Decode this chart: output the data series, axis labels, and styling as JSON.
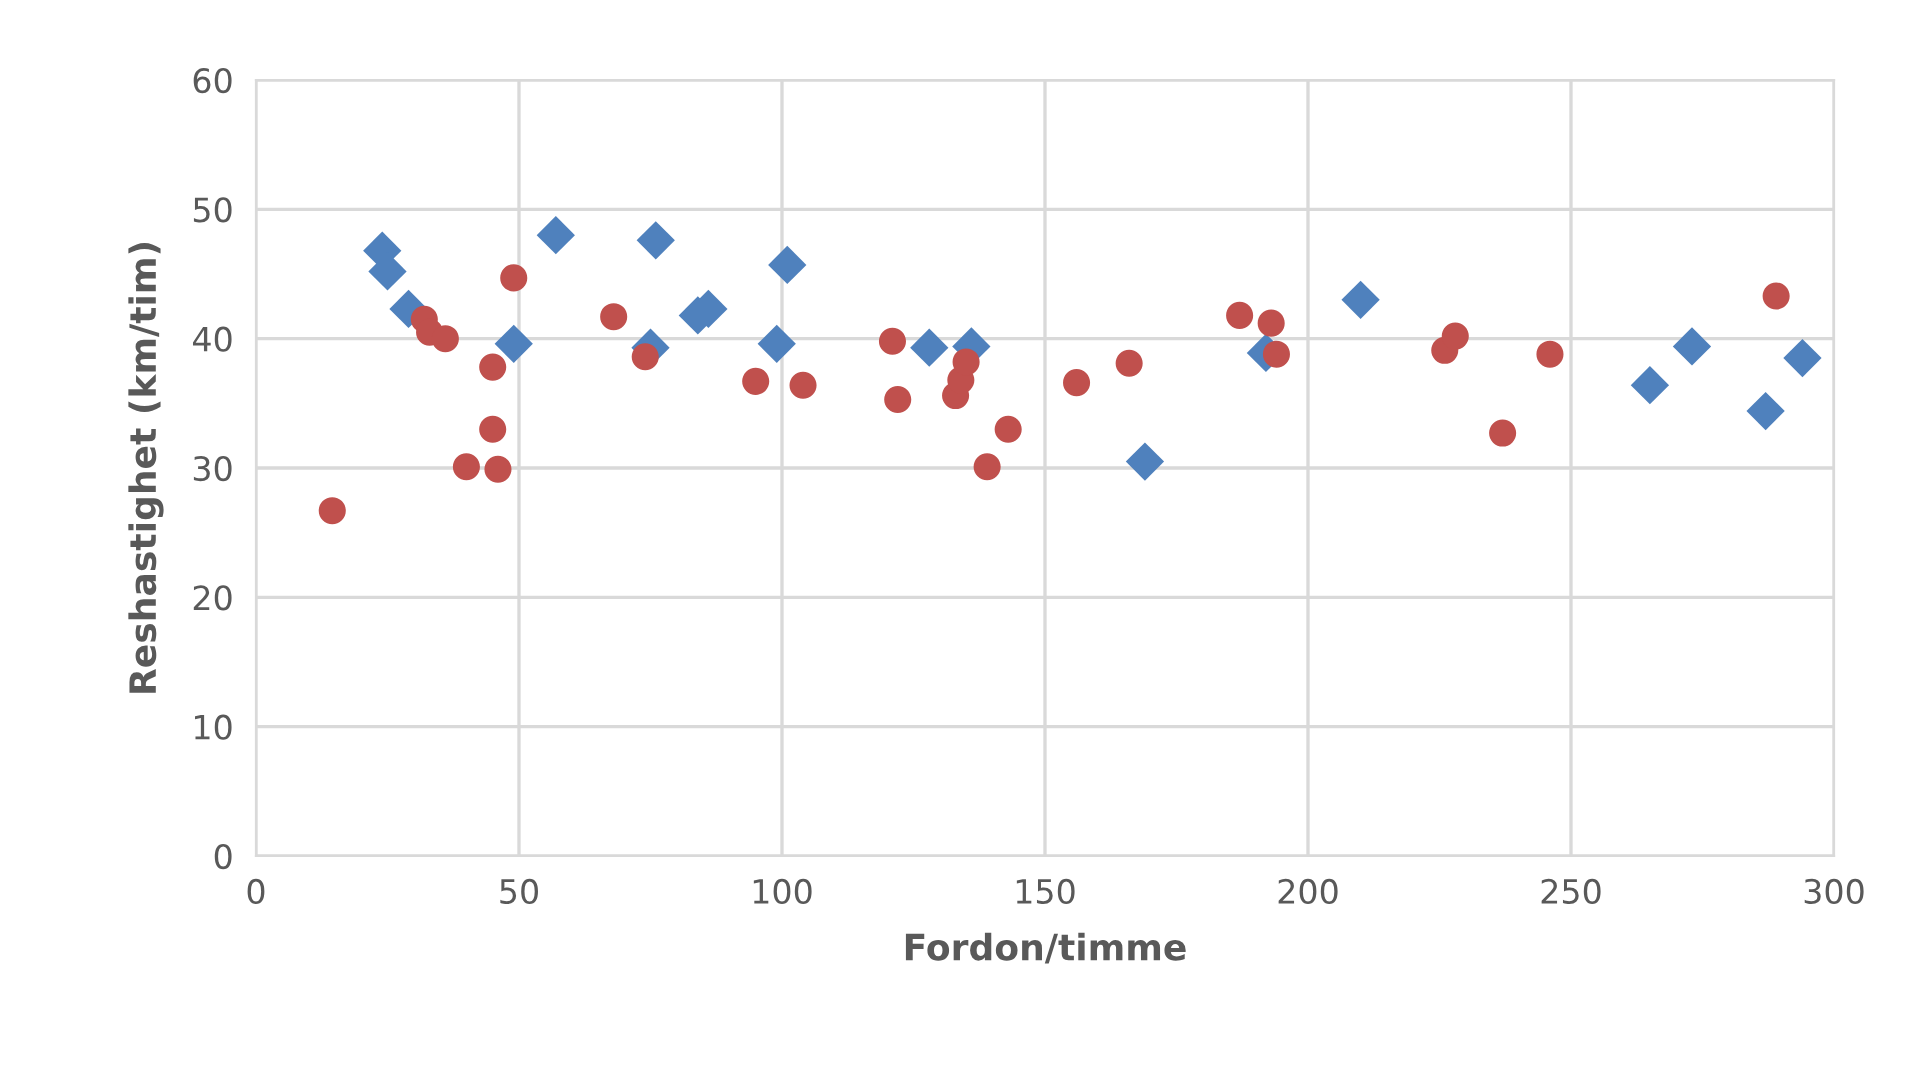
{
  "chart_data": {
    "type": "scatter",
    "xlabel": "Fordon/timme",
    "ylabel": "Reshastighet (km/tim)",
    "xlim": [
      0,
      300
    ],
    "xticks": [
      0,
      50,
      100,
      150,
      200,
      250,
      300
    ],
    "ylim": [
      0,
      60
    ],
    "yticks": [
      0,
      10,
      20,
      30,
      40,
      50,
      60
    ],
    "grid": true,
    "legend": false,
    "series": [
      {
        "color": "#4f81bd",
        "marker": "diamond",
        "x": [
          24,
          25,
          29,
          49,
          57,
          75,
          76,
          84,
          86,
          99,
          101,
          128,
          136,
          169,
          192,
          210,
          265,
          273,
          287,
          294
        ],
        "values": [
          46.8,
          45.2,
          42.3,
          39.6,
          48,
          39.3,
          47.6,
          41.8,
          42.3,
          39.6,
          45.7,
          39.3,
          39.4,
          30.5,
          38.9,
          43,
          36.4,
          39.4,
          34.4,
          38.5
        ]
      },
      {
        "color": "#c0504d",
        "marker": "circle",
        "x": [
          14.5,
          32,
          33,
          36,
          40,
          45,
          45,
          46,
          49,
          68,
          74,
          95,
          104,
          121,
          122,
          133,
          134,
          135,
          139,
          143,
          156,
          166,
          187,
          193,
          194,
          226,
          228,
          237,
          246,
          289
        ],
        "values": [
          26.7,
          41.5,
          40.5,
          40,
          30.1,
          37.8,
          33,
          29.9,
          44.7,
          41.7,
          38.6,
          36.7,
          36.4,
          39.8,
          35.3,
          35.6,
          36.8,
          38.2,
          30.1,
          33,
          36.6,
          38.1,
          41.8,
          41.2,
          38.8,
          39.1,
          40.2,
          32.7,
          38.8,
          43.3
        ]
      }
    ]
  }
}
